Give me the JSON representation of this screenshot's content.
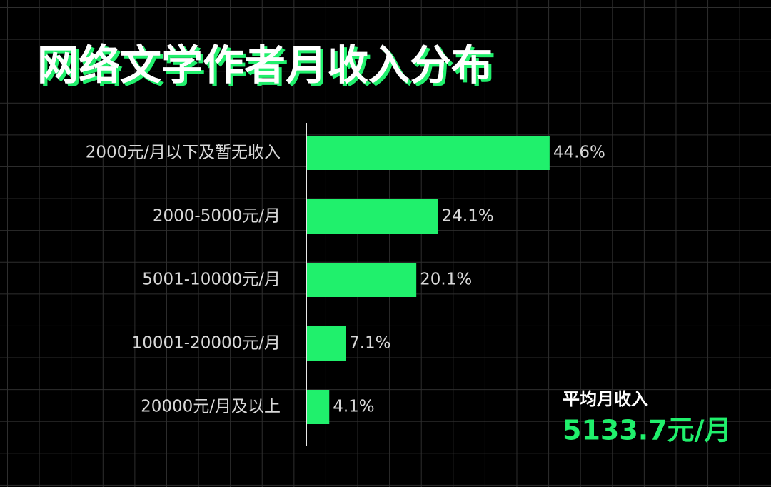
{
  "chart_data": {
    "type": "barh",
    "title": "网络文学作者月收入分布",
    "categories": [
      "2000元/月以下及暂无收入",
      "2000-5000元/月",
      "5001-10000元/月",
      "10001-20000元/月",
      "20000元/月及以上"
    ],
    "values": [
      44.6,
      24.1,
      20.1,
      7.1,
      4.1
    ],
    "value_labels": [
      "44.6%",
      "24.1%",
      "20.1%",
      "7.1%",
      "4.1%"
    ],
    "color": "#20f06c",
    "annotation": {
      "label": "平均月收入",
      "value": "5133.7元/月"
    }
  }
}
